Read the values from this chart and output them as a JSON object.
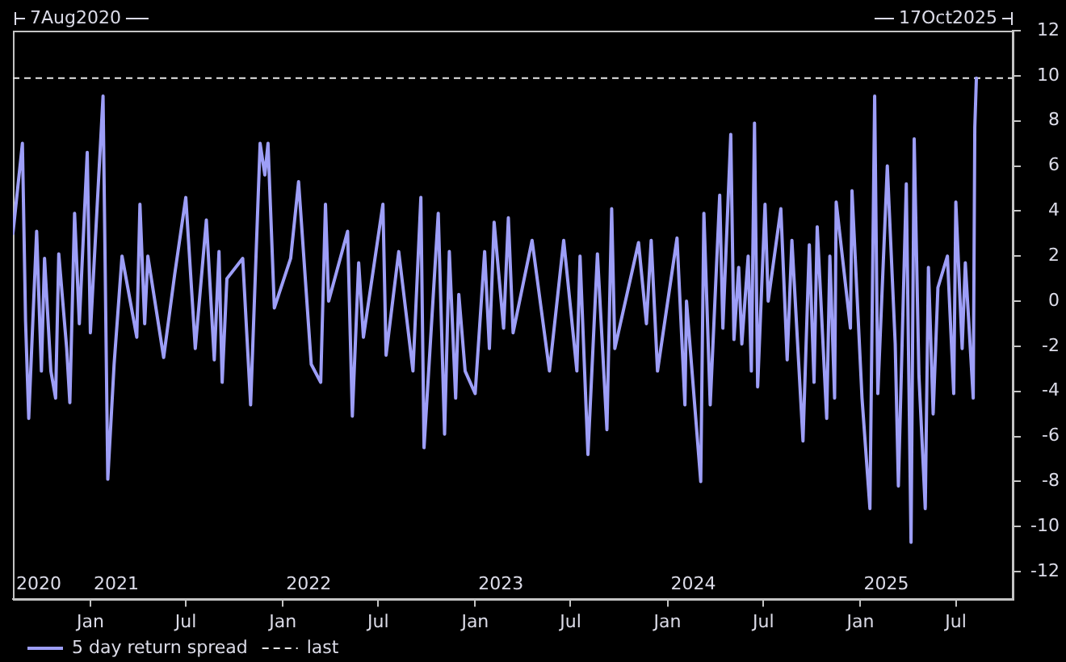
{
  "chart_data": {
    "type": "line",
    "x": [
      "2020-08-07",
      "2020-08-25",
      "2020-08-31",
      "2020-09-06",
      "2020-09-21",
      "2020-09-30",
      "2020-10-06",
      "2020-10-18",
      "2020-10-27",
      "2020-11-02",
      "2020-11-17",
      "2020-11-23",
      "2020-12-02",
      "2020-12-11",
      "2020-12-26",
      "2021-01-01",
      "2021-01-25",
      "2021-02-03",
      "2021-02-15",
      "2021-03-02",
      "2021-03-30",
      "2021-04-05",
      "2021-04-14",
      "2021-04-20",
      "2021-05-20",
      "2021-06-10",
      "2021-07-01",
      "2021-07-19",
      "2021-08-09",
      "2021-08-24",
      "2021-09-02",
      "2021-09-08",
      "2021-09-17",
      "2021-10-17",
      "2021-11-01",
      "2021-11-19",
      "2021-11-28",
      "2021-12-04",
      "2021-12-16",
      "2022-01-16",
      "2022-01-31",
      "2022-02-24",
      "2022-03-14",
      "2022-03-23",
      "2022-03-29",
      "2022-05-04",
      "2022-05-13",
      "2022-05-25",
      "2022-06-03",
      "2022-07-10",
      "2022-07-16",
      "2022-08-09",
      "2022-09-05",
      "2022-09-20",
      "2022-09-26",
      "2022-10-23",
      "2022-11-04",
      "2022-11-13",
      "2022-11-25",
      "2022-12-01",
      "2022-12-13",
      "2023-01-01",
      "2023-01-19",
      "2023-01-28",
      "2023-02-06",
      "2023-02-24",
      "2023-03-05",
      "2023-03-14",
      "2023-04-19",
      "2023-05-22",
      "2023-06-18",
      "2023-07-13",
      "2023-07-19",
      "2023-08-03",
      "2023-08-21",
      "2023-09-08",
      "2023-09-17",
      "2023-09-23",
      "2023-11-07",
      "2023-11-22",
      "2023-12-01",
      "2023-12-13",
      "2024-01-19",
      "2024-02-03",
      "2024-02-06",
      "2024-03-04",
      "2024-03-10",
      "2024-03-22",
      "2024-04-09",
      "2024-04-15",
      "2024-04-30",
      "2024-05-06",
      "2024-05-15",
      "2024-05-21",
      "2024-06-02",
      "2024-06-08",
      "2024-06-14",
      "2024-06-20",
      "2024-07-04",
      "2024-07-10",
      "2024-08-03",
      "2024-08-15",
      "2024-08-24",
      "2024-09-14",
      "2024-09-26",
      "2024-10-05",
      "2024-10-11",
      "2024-10-29",
      "2024-11-04",
      "2024-11-13",
      "2024-11-16",
      "2024-12-13",
      "2024-12-16",
      "2025-01-04",
      "2025-01-19",
      "2025-01-28",
      "2025-02-03",
      "2025-02-21",
      "2025-03-08",
      "2025-03-14",
      "2025-03-29",
      "2025-04-07",
      "2025-04-13",
      "2025-04-22",
      "2025-05-04",
      "2025-05-10",
      "2025-05-19",
      "2025-05-28",
      "2025-06-15",
      "2025-06-27",
      "2025-07-01",
      "2025-07-13",
      "2025-07-19",
      "2025-08-03",
      "2025-08-06",
      "2025-08-09"
    ],
    "series": [
      {
        "name": "5 day return spread",
        "color": "#9d9ef7",
        "values": [
          3.0,
          7.0,
          -0.9,
          -5.2,
          3.1,
          -3.1,
          1.9,
          -3.1,
          -4.3,
          2.1,
          -2.1,
          -4.5,
          3.9,
          -1.0,
          6.6,
          -1.4,
          9.1,
          -7.9,
          -2.8,
          2.0,
          -1.6,
          4.3,
          -1.0,
          2.0,
          -2.5,
          1.2,
          4.6,
          -2.1,
          3.6,
          -2.6,
          2.2,
          -3.6,
          1.0,
          1.9,
          -4.6,
          7.0,
          5.6,
          7.0,
          -0.3,
          1.9,
          5.3,
          -2.8,
          -3.6,
          4.3,
          0.0,
          3.1,
          -5.1,
          1.7,
          -1.6,
          4.3,
          -2.4,
          2.2,
          -3.1,
          4.6,
          -6.5,
          3.9,
          -5.9,
          2.2,
          -4.3,
          0.3,
          -3.1,
          -4.1,
          2.2,
          -2.1,
          3.5,
          -1.2,
          3.7,
          -1.4,
          2.7,
          -3.1,
          2.7,
          -3.1,
          2.0,
          -6.8,
          2.1,
          -5.7,
          4.1,
          -2.1,
          2.6,
          -1.0,
          2.7,
          -3.1,
          2.8,
          -4.6,
          0.0,
          -8.0,
          3.9,
          -4.6,
          4.7,
          -1.2,
          7.4,
          -1.7,
          1.5,
          -1.9,
          2.0,
          -3.1,
          7.9,
          -3.8,
          4.3,
          0.0,
          4.1,
          -2.6,
          2.7,
          -6.2,
          2.5,
          -3.6,
          3.3,
          -5.2,
          2.0,
          -4.3,
          4.4,
          -1.2,
          4.9,
          -4.3,
          -9.2,
          9.1,
          -4.1,
          6.0,
          -1.9,
          -8.2,
          5.2,
          -10.7,
          7.2,
          -3.3,
          -9.2,
          1.5,
          -5.0,
          0.6,
          2.0,
          -4.1,
          4.4,
          -2.1,
          1.7,
          -4.3,
          7.7,
          9.9
        ]
      }
    ],
    "xlim": [
      "2020-08-07",
      "2025-10-17"
    ],
    "xticks": [
      {
        "value": "2021-01-01",
        "label": "Jan"
      },
      {
        "value": "2021-07-01",
        "label": "Jul"
      },
      {
        "value": "2022-01-01",
        "label": "Jan"
      },
      {
        "value": "2022-07-01",
        "label": "Jul"
      },
      {
        "value": "2023-01-01",
        "label": "Jan"
      },
      {
        "value": "2023-07-01",
        "label": "Jul"
      },
      {
        "value": "2024-01-01",
        "label": "Jan"
      },
      {
        "value": "2024-07-01",
        "label": "Jul"
      },
      {
        "value": "2025-01-01",
        "label": "Jan"
      },
      {
        "value": "2025-07-01",
        "label": "Jul"
      }
    ],
    "ylim": [
      -13.2,
      12
    ],
    "yticks": [
      -12,
      -10,
      -8,
      -6,
      -4,
      -2,
      0,
      2,
      4,
      6,
      8,
      10,
      12
    ],
    "ref_lines": [
      {
        "axis": "y",
        "value": 9.9,
        "label": "last",
        "color": "#e6e6e6",
        "line_style": "dashed"
      }
    ],
    "annotations": [
      "7Aug2020",
      "17Oct2025",
      "2020",
      "2021",
      "2022",
      "2023",
      "2024",
      "2025"
    ],
    "legend": "bottom"
  }
}
